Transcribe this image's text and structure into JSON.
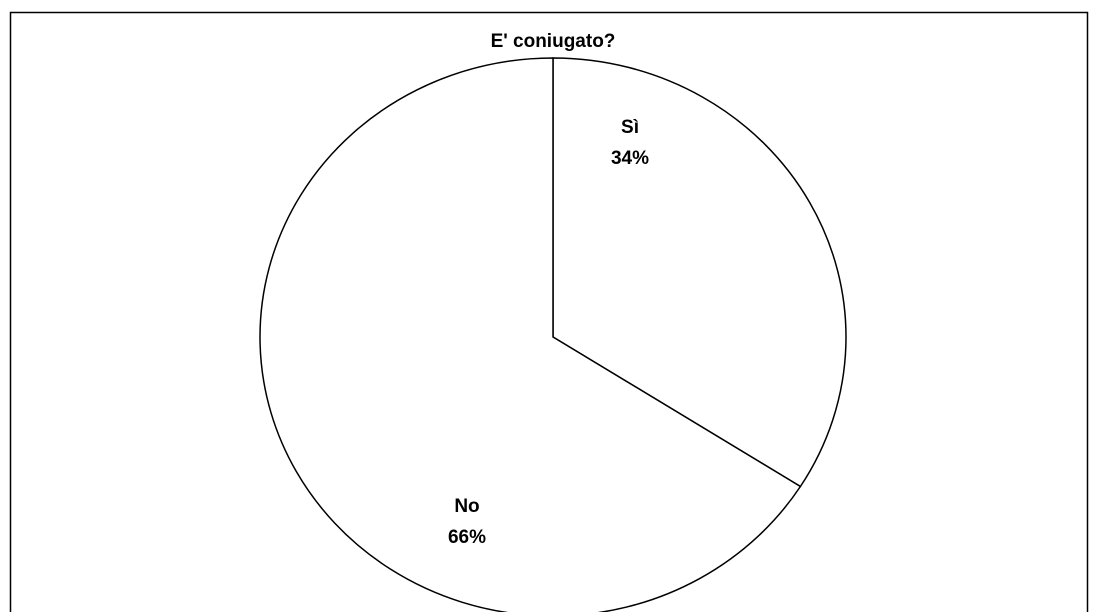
{
  "chart_data": {
    "type": "pie",
    "title": "E' coniugato?",
    "categories": [
      "Sì",
      "No"
    ],
    "values": [
      34,
      66
    ],
    "value_labels": [
      "34%",
      "66%"
    ],
    "colors": [
      "#ffffff",
      "#ffffff"
    ]
  }
}
